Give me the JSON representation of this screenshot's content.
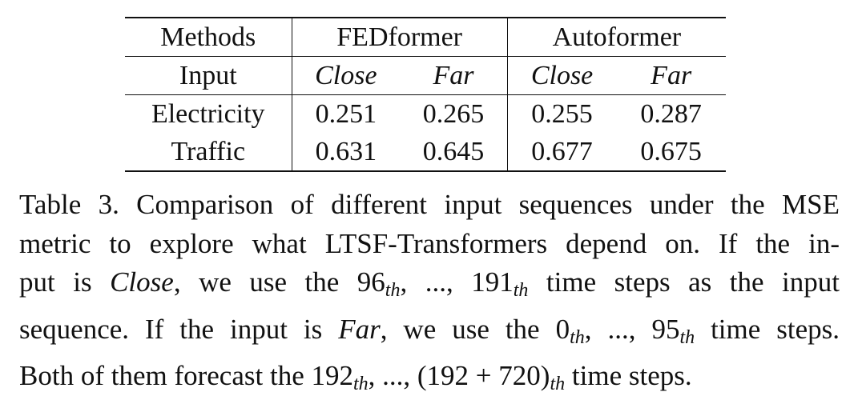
{
  "table": {
    "header_row1": {
      "methods": "Methods",
      "model_a": "FEDformer",
      "model_b": "Autoformer"
    },
    "header_row2": {
      "input": "Input",
      "a_close": "Close",
      "a_far": "Far",
      "b_close": "Close",
      "b_far": "Far"
    },
    "rows": [
      {
        "dataset": "Electricity",
        "a_close": "0.251",
        "a_far": "0.265",
        "b_close": "0.255",
        "b_far": "0.287"
      },
      {
        "dataset": "Traffic",
        "a_close": "0.631",
        "a_far": "0.645",
        "b_close": "0.677",
        "b_far": "0.675"
      }
    ]
  },
  "caption": {
    "l1": "Table 3. Comparison of different input sequences under the MSE",
    "l2": "metric to explore what LTSF-Transformers depend on.  If the in-",
    "l3_a": "put is ",
    "l3_close": "Close",
    "l3_b": ", we use the ",
    "l3_n1": "96",
    "l3_sub": "th",
    "l3_c": ", ..., ",
    "l3_n2": "191",
    "l3_d": " time steps as the input",
    "l4_a": "sequence.  If the input is ",
    "l4_far": "Far",
    "l4_b": ", we use the ",
    "l4_n1": "0",
    "l4_sub": "th",
    "l4_c": ", ..., ",
    "l4_n2": "95",
    "l4_d": " time steps.",
    "l5_a": "Both of them forecast the ",
    "l5_n1": "192",
    "l5_sub": "th",
    "l5_c": ", ..., ",
    "l5_n2": "(192 + 720)",
    "l5_d": " time steps."
  }
}
